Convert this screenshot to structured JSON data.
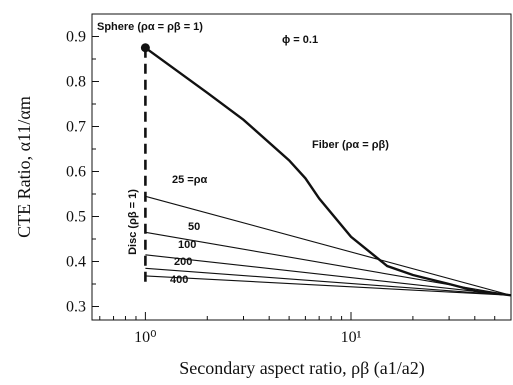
{
  "chart_data": {
    "type": "line",
    "xlabel": "Secondary aspect ratio, ρβ (a1/a2)",
    "ylabel": "CTE Ratio, α11/αm",
    "x_scale": "log",
    "xlim": [
      0.55,
      60
    ],
    "ylim": [
      0.27,
      0.95
    ],
    "x_ticks": [
      {
        "value": 1,
        "label": "10⁰"
      },
      {
        "value": 10,
        "label": "10¹"
      }
    ],
    "y_ticks": [
      0.3,
      0.4,
      0.5,
      0.6,
      0.7,
      0.8,
      0.9
    ],
    "grid": false,
    "series": [
      {
        "name": "Fiber (ρα = ρβ)",
        "style": "bold",
        "x": [
          1,
          2,
          3,
          5,
          6,
          7,
          10,
          15,
          20,
          30,
          40,
          60
        ],
        "y": [
          0.875,
          0.775,
          0.715,
          0.625,
          0.585,
          0.54,
          0.455,
          0.39,
          0.37,
          0.35,
          0.335,
          0.325
        ]
      },
      {
        "name": "25 = ρα",
        "label_text": "25 =ρα",
        "style": "thin",
        "x": [
          1,
          60
        ],
        "y": [
          0.545,
          0.325
        ]
      },
      {
        "name": "50",
        "label_text": "50",
        "style": "thin",
        "x": [
          1,
          60
        ],
        "y": [
          0.465,
          0.325
        ]
      },
      {
        "name": "100",
        "label_text": "100",
        "style": "thin",
        "x": [
          1,
          60
        ],
        "y": [
          0.415,
          0.325
        ]
      },
      {
        "name": "200",
        "label_text": "200",
        "style": "thin",
        "x": [
          1,
          60
        ],
        "y": [
          0.385,
          0.325
        ]
      },
      {
        "name": "400",
        "label_text": "400",
        "style": "thin",
        "x": [
          1,
          60
        ],
        "y": [
          0.368,
          0.325
        ]
      },
      {
        "name": "Disc (ρβ = 1)",
        "style": "dashed",
        "x": [
          1,
          1
        ],
        "y": [
          0.875,
          0.35
        ]
      }
    ],
    "points": [
      {
        "name": "Sphere (ρα = ρβ = 1)",
        "x": 1,
        "y": 0.875
      }
    ],
    "annotations": {
      "sphere": "Sphere (ρα = ρβ = 1)",
      "phi": "ϕ = 0.1",
      "fiber": "Fiber (ρα = ρβ)",
      "disc": "Disc (ρβ = 1)"
    }
  }
}
